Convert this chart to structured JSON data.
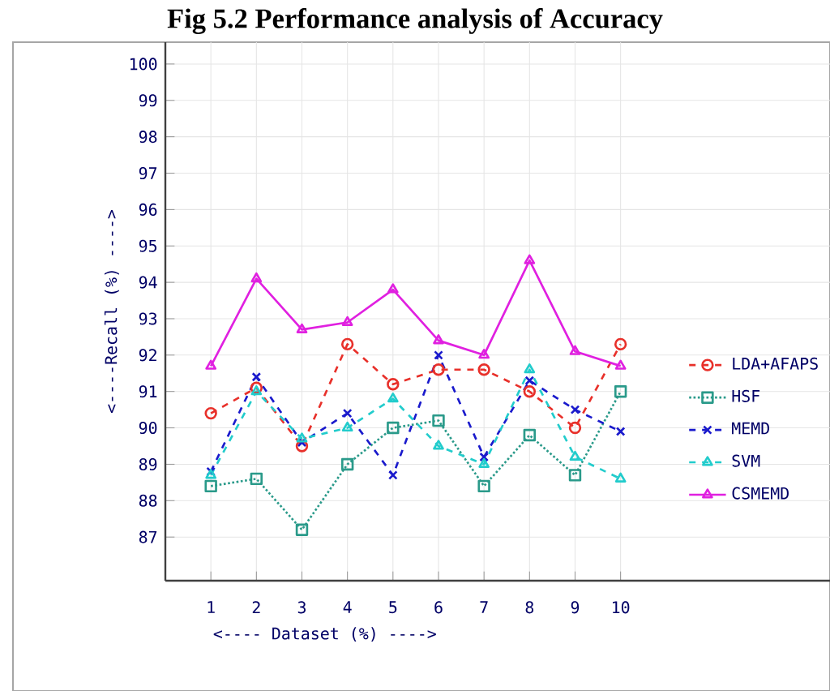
{
  "chart_data": {
    "type": "line",
    "title": "Fig 5.2 Performance analysis of Accuracy",
    "xlabel": "<---- Dataset (%) ---->",
    "ylabel": "<----Recall (%) ---->",
    "x": [
      1,
      2,
      3,
      4,
      5,
      6,
      7,
      8,
      9,
      10
    ],
    "series": [
      {
        "name": "LDA+AFAPS",
        "color": "#e8302a",
        "marker": "circle",
        "line_style": "dashed",
        "values": [
          90.4,
          91.1,
          89.5,
          92.3,
          91.2,
          91.6,
          91.6,
          91.0,
          90.0,
          92.3
        ]
      },
      {
        "name": "HSF",
        "color": "#2a9a8a",
        "marker": "square",
        "line_style": "dotted",
        "values": [
          88.4,
          88.6,
          87.2,
          89.0,
          90.0,
          90.2,
          88.4,
          89.8,
          88.7,
          91.0
        ]
      },
      {
        "name": "MEMD",
        "color": "#1a1acc",
        "marker": "cross",
        "line_style": "dashed",
        "values": [
          88.8,
          91.4,
          89.6,
          90.4,
          88.7,
          92.0,
          89.2,
          91.3,
          90.5,
          89.9
        ]
      },
      {
        "name": "SVM",
        "color": "#22cccc",
        "marker": "triangle-down",
        "line_style": "dashed",
        "values": [
          88.7,
          91.0,
          89.7,
          90.0,
          90.8,
          89.5,
          89.0,
          91.6,
          89.2,
          88.6
        ]
      },
      {
        "name": "CSMEMD",
        "color": "#e020e0",
        "marker": "triangle",
        "line_style": "solid",
        "values": [
          91.7,
          94.1,
          92.7,
          92.9,
          93.8,
          92.4,
          92.0,
          94.6,
          92.1,
          91.7
        ]
      }
    ],
    "xlim": [
      0,
      14.6
    ],
    "ylim": [
      85.8,
      100.6
    ],
    "xticks": [
      1,
      2,
      3,
      4,
      5,
      6,
      7,
      8,
      9,
      10
    ],
    "yticks": [
      87,
      88,
      89,
      90,
      91,
      92,
      93,
      94,
      95,
      96,
      97,
      98,
      99,
      100
    ],
    "grid": true,
    "legend": "right"
  }
}
